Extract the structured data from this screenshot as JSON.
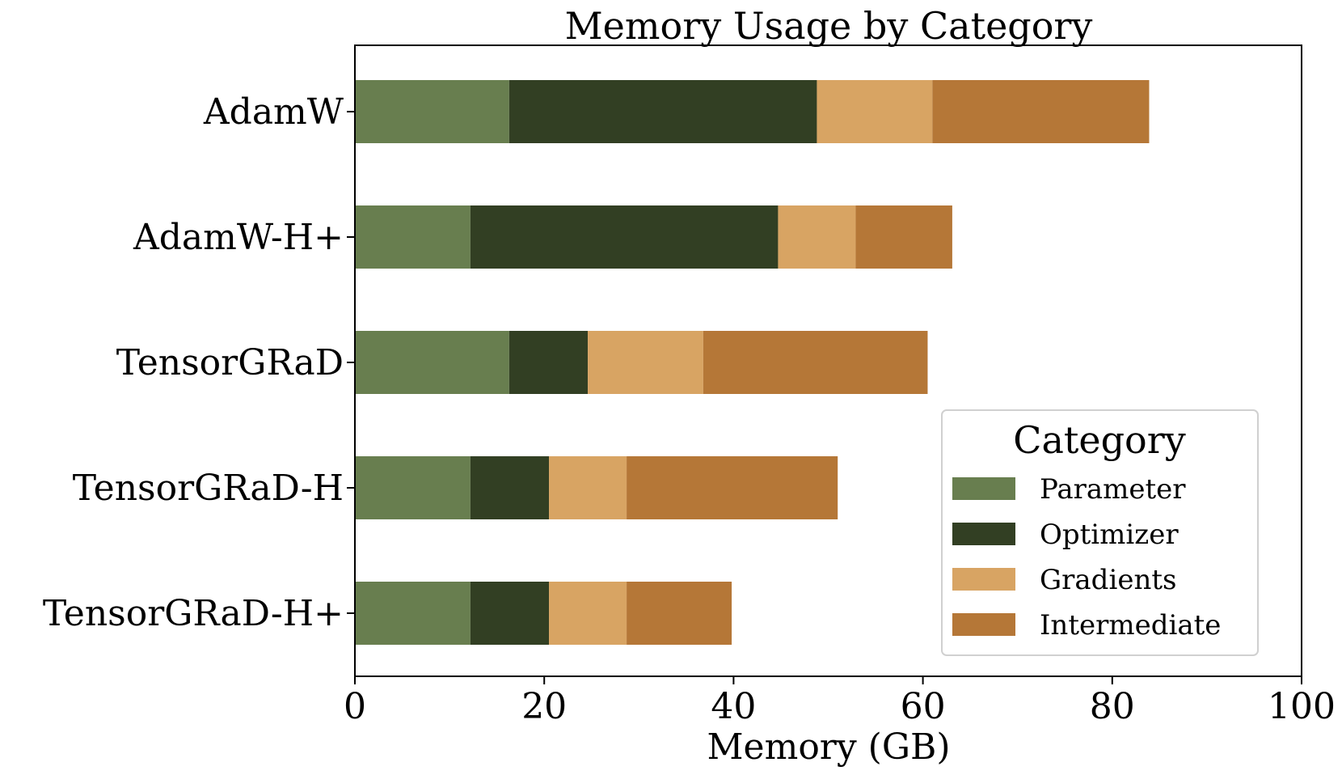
{
  "chart_data": {
    "type": "bar",
    "orientation": "horizontal",
    "stacked": true,
    "title": "Memory Usage by Category",
    "xlabel": "Memory (GB)",
    "ylabel": "",
    "xlim": [
      0,
      100
    ],
    "xticks": [
      0,
      20,
      40,
      60,
      80,
      100
    ],
    "grid": false,
    "categories": [
      "AdamW",
      "AdamW-H+",
      "TensorGRaD",
      "TensorGRaD-H",
      "TensorGRaD-H+"
    ],
    "legend": {
      "title": "Category",
      "position": "lower-right"
    },
    "series": [
      {
        "name": "Parameter",
        "color": "#687e4f",
        "values": [
          16.3,
          12.2,
          16.3,
          12.2,
          12.2
        ]
      },
      {
        "name": "Optimizer",
        "color": "#323f23",
        "values": [
          32.5,
          32.5,
          8.3,
          8.3,
          8.3
        ]
      },
      {
        "name": "Gradients",
        "color": "#d8a463",
        "values": [
          12.2,
          8.2,
          12.2,
          8.2,
          8.2
        ]
      },
      {
        "name": "Intermediate",
        "color": "#b57737",
        "values": [
          22.9,
          10.2,
          23.7,
          22.3,
          11.1
        ]
      }
    ]
  }
}
